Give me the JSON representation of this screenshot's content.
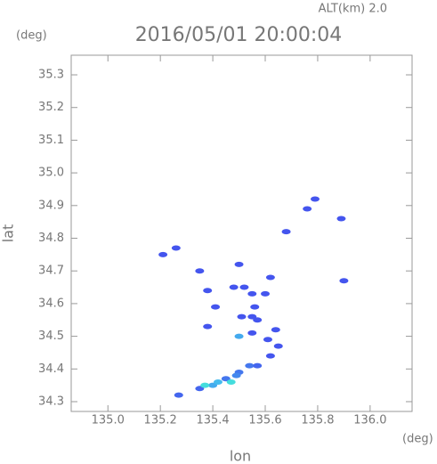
{
  "chart_data": {
    "type": "scatter",
    "title": "2016/05/01 20:00:04",
    "subtitle": "ALT(km) 2.0",
    "x_label": "lon",
    "y_label": "lat",
    "x_unit": "(deg)",
    "y_unit": "(deg)",
    "xlim": [
      134.86,
      136.16
    ],
    "ylim": [
      34.27,
      35.36
    ],
    "xticks": [
      {
        "value": 135.0,
        "label": "135.0"
      },
      135.2,
      135.4,
      135.6,
      135.8,
      {
        "value": 136.0,
        "label": "136.0"
      }
    ],
    "yticks": [
      34.3,
      34.4,
      34.5,
      34.6,
      34.7,
      34.8,
      34.9,
      {
        "value": 35.0,
        "label": "35.0"
      },
      35.1,
      35.2,
      35.3
    ],
    "x": [
      135.21,
      135.26,
      135.35,
      135.38,
      135.38,
      135.41,
      135.5,
      135.48,
      135.52,
      135.55,
      135.6,
      135.62,
      135.51,
      135.55,
      135.5,
      135.55,
      135.61,
      135.65,
      135.62,
      135.54,
      135.5,
      135.45,
      135.4,
      135.35,
      135.27,
      135.57,
      135.76,
      135.79,
      135.89,
      135.9,
      135.68,
      135.56,
      135.64,
      135.47,
      135.37,
      135.49,
      135.57,
      135.42
    ],
    "values": [
      34.75,
      34.77,
      34.7,
      34.64,
      34.53,
      34.59,
      34.72,
      34.65,
      34.65,
      34.63,
      34.63,
      34.68,
      34.56,
      34.56,
      34.5,
      34.51,
      34.49,
      34.47,
      34.44,
      34.41,
      34.39,
      34.37,
      34.35,
      34.34,
      34.32,
      34.55,
      34.89,
      34.92,
      34.86,
      34.67,
      34.82,
      34.59,
      34.52,
      34.36,
      34.35,
      34.38,
      34.41,
      34.36
    ],
    "colors": [
      "#4455ee",
      "#4455ee",
      "#4455ee",
      "#4455ee",
      "#4455ee",
      "#4455ee",
      "#4455ee",
      "#4455ee",
      "#4455ee",
      "#4455ee",
      "#4455ee",
      "#4455ee",
      "#4455ee",
      "#4455ee",
      "#44aaee",
      "#4455ee",
      "#4455ee",
      "#4455ee",
      "#4455ee",
      "#4477ee",
      "#4477ee",
      "#4477ee",
      "#44aaee",
      "#4466ee",
      "#4466ee",
      "#4455ee",
      "#4455ee",
      "#4455ee",
      "#4455ee",
      "#4455ee",
      "#4455ee",
      "#4455ee",
      "#4455ee",
      "#44dddd",
      "#44dddd",
      "#4488ee",
      "#4466ee",
      "#44bbee"
    ]
  }
}
